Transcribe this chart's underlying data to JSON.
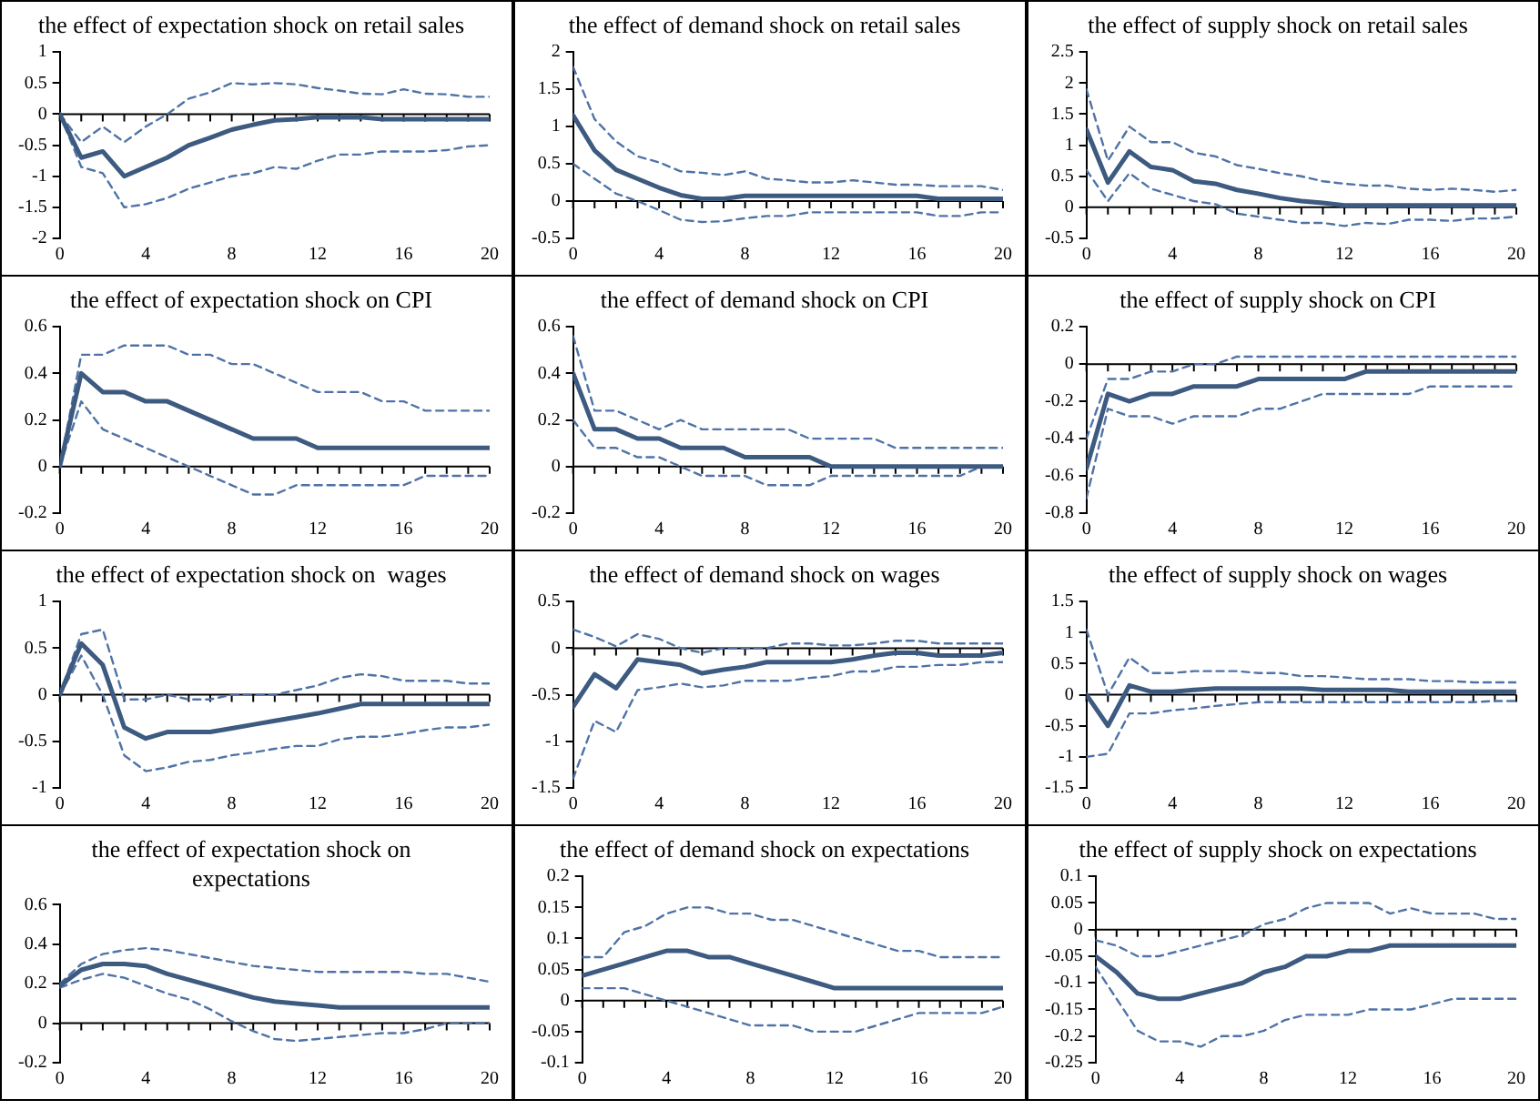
{
  "chart_data": [
    {
      "type": "line",
      "title": "the effect of expectation shock on retail sales",
      "x": [
        0,
        1,
        2,
        3,
        4,
        5,
        6,
        7,
        8,
        9,
        10,
        11,
        12,
        13,
        14,
        15,
        16,
        17,
        18,
        19,
        20
      ],
      "xlim": [
        0,
        20
      ],
      "xticks": [
        0,
        {
          "value": 1,
          "label": null
        },
        {
          "value": 2,
          "label": null
        },
        {
          "value": 3,
          "label": null
        },
        4,
        {
          "value": 5,
          "label": null
        },
        {
          "value": 6,
          "label": null
        },
        {
          "value": 7,
          "label": null
        },
        8,
        {
          "value": 9,
          "label": null
        },
        {
          "value": 10,
          "label": null
        },
        {
          "value": 11,
          "label": null
        },
        12,
        {
          "value": 13,
          "label": null
        },
        {
          "value": 14,
          "label": null
        },
        {
          "value": 15,
          "label": null
        },
        16,
        {
          "value": 17,
          "label": null
        },
        {
          "value": 18,
          "label": null
        },
        {
          "value": 19,
          "label": null
        },
        20
      ],
      "ylim": [
        -2,
        1
      ],
      "yticks": [
        -2,
        -1.5,
        -1,
        -0.5,
        0,
        0.5,
        1
      ],
      "marker": "none",
      "series": [
        {
          "color": "#3d5a80",
          "values": [
            0,
            -0.7,
            -0.6,
            -1.0,
            -0.85,
            -0.7,
            -0.5,
            -0.38,
            -0.25,
            -0.17,
            -0.1,
            -0.08,
            -0.05,
            -0.05,
            -0.05,
            -0.08,
            -0.08,
            -0.08,
            -0.08,
            -0.08,
            -0.08
          ]
        },
        {
          "color": "#4f73a6",
          "line_style": "dashed",
          "values": [
            0,
            -0.45,
            -0.2,
            -0.45,
            -0.2,
            0,
            0.25,
            0.35,
            0.5,
            0.48,
            0.5,
            0.48,
            0.42,
            0.38,
            0.33,
            0.32,
            0.4,
            0.33,
            0.32,
            0.28,
            0.28
          ]
        },
        {
          "color": "#4f73a6",
          "line_style": "dashed",
          "values": [
            0,
            -0.85,
            -0.95,
            -1.5,
            -1.45,
            -1.35,
            -1.2,
            -1.1,
            -1.0,
            -0.95,
            -0.85,
            -0.88,
            -0.75,
            -0.65,
            -0.65,
            -0.6,
            -0.6,
            -0.6,
            -0.58,
            -0.52,
            -0.5
          ]
        }
      ]
    },
    {
      "type": "line",
      "title": "the effect of demand shock on retail sales",
      "x": [
        0,
        1,
        2,
        3,
        4,
        5,
        6,
        7,
        8,
        9,
        10,
        11,
        12,
        13,
        14,
        15,
        16,
        17,
        18,
        19,
        20
      ],
      "xlim": [
        0,
        20
      ],
      "xticks": [
        0,
        {
          "value": 1,
          "label": null
        },
        {
          "value": 2,
          "label": null
        },
        {
          "value": 3,
          "label": null
        },
        4,
        {
          "value": 5,
          "label": null
        },
        {
          "value": 6,
          "label": null
        },
        {
          "value": 7,
          "label": null
        },
        8,
        {
          "value": 9,
          "label": null
        },
        {
          "value": 10,
          "label": null
        },
        {
          "value": 11,
          "label": null
        },
        12,
        {
          "value": 13,
          "label": null
        },
        {
          "value": 14,
          "label": null
        },
        {
          "value": 15,
          "label": null
        },
        16,
        {
          "value": 17,
          "label": null
        },
        {
          "value": 18,
          "label": null
        },
        {
          "value": 19,
          "label": null
        },
        20
      ],
      "ylim": [
        -0.5,
        2
      ],
      "yticks": [
        -0.5,
        0,
        0.5,
        1,
        1.5,
        2
      ],
      "marker": "none",
      "series": [
        {
          "color": "#3d5a80",
          "values": [
            1.15,
            0.68,
            0.42,
            0.3,
            0.18,
            0.08,
            0.03,
            0.03,
            0.07,
            0.07,
            0.07,
            0.07,
            0.07,
            0.07,
            0.07,
            0.07,
            0.07,
            0.03,
            0.03,
            0.03,
            0.03
          ]
        },
        {
          "color": "#4f73a6",
          "line_style": "dashed",
          "values": [
            1.8,
            1.1,
            0.8,
            0.6,
            0.52,
            0.4,
            0.38,
            0.35,
            0.4,
            0.3,
            0.28,
            0.25,
            0.25,
            0.28,
            0.25,
            0.22,
            0.22,
            0.2,
            0.2,
            0.2,
            0.15
          ]
        },
        {
          "color": "#4f73a6",
          "line_style": "dashed",
          "values": [
            0.5,
            0.3,
            0.1,
            0,
            -0.12,
            -0.25,
            -0.28,
            -0.27,
            -0.23,
            -0.2,
            -0.2,
            -0.15,
            -0.15,
            -0.15,
            -0.15,
            -0.15,
            -0.15,
            -0.2,
            -0.2,
            -0.15,
            -0.15
          ]
        }
      ]
    },
    {
      "type": "line",
      "title": "the effect of supply shock on retail sales",
      "x": [
        0,
        1,
        2,
        3,
        4,
        5,
        6,
        7,
        8,
        9,
        10,
        11,
        12,
        13,
        14,
        15,
        16,
        17,
        18,
        19,
        20
      ],
      "xlim": [
        0,
        20
      ],
      "xticks": [
        0,
        {
          "value": 1,
          "label": null
        },
        {
          "value": 2,
          "label": null
        },
        {
          "value": 3,
          "label": null
        },
        4,
        {
          "value": 5,
          "label": null
        },
        {
          "value": 6,
          "label": null
        },
        {
          "value": 7,
          "label": null
        },
        8,
        {
          "value": 9,
          "label": null
        },
        {
          "value": 10,
          "label": null
        },
        {
          "value": 11,
          "label": null
        },
        12,
        {
          "value": 13,
          "label": null
        },
        {
          "value": 14,
          "label": null
        },
        {
          "value": 15,
          "label": null
        },
        16,
        {
          "value": 17,
          "label": null
        },
        {
          "value": 18,
          "label": null
        },
        {
          "value": 19,
          "label": null
        },
        20
      ],
      "ylim": [
        -0.5,
        2.5
      ],
      "yticks": [
        -0.5,
        0,
        0.5,
        1,
        1.5,
        2,
        2.5
      ],
      "marker": "none",
      "series": [
        {
          "color": "#3d5a80",
          "values": [
            1.25,
            0.4,
            0.9,
            0.65,
            0.6,
            0.42,
            0.38,
            0.28,
            0.22,
            0.15,
            0.1,
            0.07,
            0.03,
            0.03,
            0.03,
            0.03,
            0.03,
            0.03,
            0.03,
            0.03,
            0.03
          ]
        },
        {
          "color": "#4f73a6",
          "line_style": "dashed",
          "values": [
            1.9,
            0.75,
            1.3,
            1.05,
            1.05,
            0.88,
            0.82,
            0.68,
            0.62,
            0.55,
            0.5,
            0.42,
            0.38,
            0.35,
            0.35,
            0.3,
            0.28,
            0.3,
            0.28,
            0.25,
            0.28
          ]
        },
        {
          "color": "#4f73a6",
          "line_style": "dashed",
          "values": [
            0.6,
            0.1,
            0.55,
            0.3,
            0.2,
            0.1,
            0.05,
            -0.1,
            -0.15,
            -0.2,
            -0.25,
            -0.25,
            -0.3,
            -0.25,
            -0.27,
            -0.2,
            -0.2,
            -0.22,
            -0.18,
            -0.18,
            -0.15
          ]
        }
      ]
    },
    {
      "type": "line",
      "title": "the effect of expectation shock on CPI",
      "x": [
        0,
        1,
        2,
        3,
        4,
        5,
        6,
        7,
        8,
        9,
        10,
        11,
        12,
        13,
        14,
        15,
        16,
        17,
        18,
        19,
        20
      ],
      "xlim": [
        0,
        20
      ],
      "xticks": [
        0,
        {
          "value": 1,
          "label": null
        },
        {
          "value": 2,
          "label": null
        },
        {
          "value": 3,
          "label": null
        },
        4,
        {
          "value": 5,
          "label": null
        },
        {
          "value": 6,
          "label": null
        },
        {
          "value": 7,
          "label": null
        },
        8,
        {
          "value": 9,
          "label": null
        },
        {
          "value": 10,
          "label": null
        },
        {
          "value": 11,
          "label": null
        },
        12,
        {
          "value": 13,
          "label": null
        },
        {
          "value": 14,
          "label": null
        },
        {
          "value": 15,
          "label": null
        },
        16,
        {
          "value": 17,
          "label": null
        },
        {
          "value": 18,
          "label": null
        },
        {
          "value": 19,
          "label": null
        },
        20
      ],
      "ylim": [
        -0.2,
        0.6
      ],
      "yticks": [
        -0.2,
        0,
        0.2,
        0.4,
        0.6
      ],
      "marker": "none",
      "series": [
        {
          "color": "#3d5a80",
          "values": [
            0,
            0.4,
            0.32,
            0.32,
            0.28,
            0.28,
            0.24,
            0.2,
            0.16,
            0.12,
            0.12,
            0.12,
            0.08,
            0.08,
            0.08,
            0.08,
            0.08,
            0.08,
            0.08,
            0.08,
            0.08
          ]
        },
        {
          "color": "#4f73a6",
          "line_style": "dashed",
          "values": [
            0,
            0.48,
            0.48,
            0.52,
            0.52,
            0.52,
            0.48,
            0.48,
            0.44,
            0.44,
            0.4,
            0.36,
            0.32,
            0.32,
            0.32,
            0.28,
            0.28,
            0.24,
            0.24,
            0.24,
            0.24
          ]
        },
        {
          "color": "#4f73a6",
          "line_style": "dashed",
          "values": [
            0,
            0.28,
            0.16,
            0.12,
            0.08,
            0.04,
            0,
            -0.04,
            -0.08,
            -0.12,
            -0.12,
            -0.08,
            -0.08,
            -0.08,
            -0.08,
            -0.08,
            -0.08,
            -0.04,
            -0.04,
            -0.04,
            -0.04
          ]
        }
      ]
    },
    {
      "type": "line",
      "title": "the effect of demand shock on CPI",
      "x": [
        0,
        1,
        2,
        3,
        4,
        5,
        6,
        7,
        8,
        9,
        10,
        11,
        12,
        13,
        14,
        15,
        16,
        17,
        18,
        19,
        20
      ],
      "xlim": [
        0,
        20
      ],
      "xticks": [
        0,
        {
          "value": 1,
          "label": null
        },
        {
          "value": 2,
          "label": null
        },
        {
          "value": 3,
          "label": null
        },
        4,
        {
          "value": 5,
          "label": null
        },
        {
          "value": 6,
          "label": null
        },
        {
          "value": 7,
          "label": null
        },
        8,
        {
          "value": 9,
          "label": null
        },
        {
          "value": 10,
          "label": null
        },
        {
          "value": 11,
          "label": null
        },
        12,
        {
          "value": 13,
          "label": null
        },
        {
          "value": 14,
          "label": null
        },
        {
          "value": 15,
          "label": null
        },
        16,
        {
          "value": 17,
          "label": null
        },
        {
          "value": 18,
          "label": null
        },
        {
          "value": 19,
          "label": null
        },
        20
      ],
      "ylim": [
        -0.2,
        0.6
      ],
      "yticks": [
        -0.2,
        0,
        0.2,
        0.4,
        0.6
      ],
      "marker": "none",
      "series": [
        {
          "color": "#3d5a80",
          "values": [
            0.4,
            0.16,
            0.16,
            0.12,
            0.12,
            0.08,
            0.08,
            0.08,
            0.04,
            0.04,
            0.04,
            0.04,
            0,
            0,
            0,
            0,
            0,
            0,
            0,
            0,
            0
          ]
        },
        {
          "color": "#4f73a6",
          "line_style": "dashed",
          "values": [
            0.56,
            0.24,
            0.24,
            0.2,
            0.16,
            0.2,
            0.16,
            0.16,
            0.16,
            0.16,
            0.16,
            0.12,
            0.12,
            0.12,
            0.12,
            0.08,
            0.08,
            0.08,
            0.08,
            0.08,
            0.08
          ]
        },
        {
          "color": "#4f73a6",
          "line_style": "dashed",
          "values": [
            0.2,
            0.08,
            0.08,
            0.04,
            0.04,
            0,
            -0.04,
            -0.04,
            -0.04,
            -0.08,
            -0.08,
            -0.08,
            -0.04,
            -0.04,
            -0.04,
            -0.04,
            -0.04,
            -0.04,
            -0.04,
            0,
            0
          ]
        }
      ]
    },
    {
      "type": "line",
      "title": "the effect of supply shock on CPI",
      "x": [
        0,
        1,
        2,
        3,
        4,
        5,
        6,
        7,
        8,
        9,
        10,
        11,
        12,
        13,
        14,
        15,
        16,
        17,
        18,
        19,
        20
      ],
      "xlim": [
        0,
        20
      ],
      "xticks": [
        0,
        {
          "value": 1,
          "label": null
        },
        {
          "value": 2,
          "label": null
        },
        {
          "value": 3,
          "label": null
        },
        4,
        {
          "value": 5,
          "label": null
        },
        {
          "value": 6,
          "label": null
        },
        {
          "value": 7,
          "label": null
        },
        8,
        {
          "value": 9,
          "label": null
        },
        {
          "value": 10,
          "label": null
        },
        {
          "value": 11,
          "label": null
        },
        12,
        {
          "value": 13,
          "label": null
        },
        {
          "value": 14,
          "label": null
        },
        {
          "value": 15,
          "label": null
        },
        16,
        {
          "value": 17,
          "label": null
        },
        {
          "value": 18,
          "label": null
        },
        {
          "value": 19,
          "label": null
        },
        20
      ],
      "ylim": [
        -0.8,
        0.2
      ],
      "yticks": [
        -0.8,
        -0.6,
        -0.4,
        -0.2,
        0,
        0.2
      ],
      "marker": "none",
      "series": [
        {
          "color": "#3d5a80",
          "values": [
            -0.56,
            -0.16,
            -0.2,
            -0.16,
            -0.16,
            -0.12,
            -0.12,
            -0.12,
            -0.08,
            -0.08,
            -0.08,
            -0.08,
            -0.08,
            -0.04,
            -0.04,
            -0.04,
            -0.04,
            -0.04,
            -0.04,
            -0.04,
            -0.04
          ]
        },
        {
          "color": "#4f73a6",
          "line_style": "dashed",
          "values": [
            -0.4,
            -0.08,
            -0.08,
            -0.04,
            -0.04,
            0,
            0,
            0.04,
            0.04,
            0.04,
            0.04,
            0.04,
            0.04,
            0.04,
            0.04,
            0.04,
            0.04,
            0.04,
            0.04,
            0.04,
            0.04
          ]
        },
        {
          "color": "#4f73a6",
          "line_style": "dashed",
          "values": [
            -0.72,
            -0.24,
            -0.28,
            -0.28,
            -0.32,
            -0.28,
            -0.28,
            -0.28,
            -0.24,
            -0.24,
            -0.2,
            -0.16,
            -0.16,
            -0.16,
            -0.16,
            -0.16,
            -0.12,
            -0.12,
            -0.12,
            -0.12,
            -0.12
          ]
        }
      ]
    },
    {
      "type": "line",
      "title": "the effect of expectation shock on  wages",
      "x": [
        0,
        1,
        2,
        3,
        4,
        5,
        6,
        7,
        8,
        9,
        10,
        11,
        12,
        13,
        14,
        15,
        16,
        17,
        18,
        19,
        20
      ],
      "xlim": [
        0,
        20
      ],
      "xticks": [
        0,
        {
          "value": 1,
          "label": null
        },
        {
          "value": 2,
          "label": null
        },
        {
          "value": 3,
          "label": null
        },
        4,
        {
          "value": 5,
          "label": null
        },
        {
          "value": 6,
          "label": null
        },
        {
          "value": 7,
          "label": null
        },
        8,
        {
          "value": 9,
          "label": null
        },
        {
          "value": 10,
          "label": null
        },
        {
          "value": 11,
          "label": null
        },
        12,
        {
          "value": 13,
          "label": null
        },
        {
          "value": 14,
          "label": null
        },
        {
          "value": 15,
          "label": null
        },
        16,
        {
          "value": 17,
          "label": null
        },
        {
          "value": 18,
          "label": null
        },
        {
          "value": 19,
          "label": null
        },
        20
      ],
      "ylim": [
        -1,
        1
      ],
      "yticks": [
        -1,
        -0.5,
        0,
        0.5,
        1
      ],
      "marker": "none",
      "series": [
        {
          "color": "#3d5a80",
          "values": [
            0,
            0.55,
            0.32,
            -0.35,
            -0.47,
            -0.4,
            -0.4,
            -0.4,
            -0.36,
            -0.32,
            -0.28,
            -0.24,
            -0.2,
            -0.15,
            -0.1,
            -0.1,
            -0.1,
            -0.1,
            -0.1,
            -0.1,
            -0.1
          ]
        },
        {
          "color": "#4f73a6",
          "line_style": "dashed",
          "values": [
            0,
            0.65,
            0.7,
            -0.05,
            -0.05,
            0,
            -0.05,
            -0.05,
            0,
            0,
            0,
            0.05,
            0.1,
            0.18,
            0.22,
            0.2,
            0.15,
            0.15,
            0.15,
            0.12,
            0.12
          ]
        },
        {
          "color": "#4f73a6",
          "line_style": "dashed",
          "values": [
            0,
            0.42,
            0,
            -0.65,
            -0.82,
            -0.78,
            -0.72,
            -0.7,
            -0.65,
            -0.62,
            -0.58,
            -0.55,
            -0.55,
            -0.48,
            -0.45,
            -0.45,
            -0.42,
            -0.38,
            -0.35,
            -0.35,
            -0.32
          ]
        }
      ]
    },
    {
      "type": "line",
      "title": "the effect of demand shock on wages",
      "x": [
        0,
        1,
        2,
        3,
        4,
        5,
        6,
        7,
        8,
        9,
        10,
        11,
        12,
        13,
        14,
        15,
        16,
        17,
        18,
        19,
        20
      ],
      "xlim": [
        0,
        20
      ],
      "xticks": [
        0,
        {
          "value": 1,
          "label": null
        },
        {
          "value": 2,
          "label": null
        },
        {
          "value": 3,
          "label": null
        },
        4,
        {
          "value": 5,
          "label": null
        },
        {
          "value": 6,
          "label": null
        },
        {
          "value": 7,
          "label": null
        },
        8,
        {
          "value": 9,
          "label": null
        },
        {
          "value": 10,
          "label": null
        },
        {
          "value": 11,
          "label": null
        },
        12,
        {
          "value": 13,
          "label": null
        },
        {
          "value": 14,
          "label": null
        },
        {
          "value": 15,
          "label": null
        },
        16,
        {
          "value": 17,
          "label": null
        },
        {
          "value": 18,
          "label": null
        },
        {
          "value": 19,
          "label": null
        },
        20
      ],
      "ylim": [
        -1.5,
        0.5
      ],
      "yticks": [
        -1.5,
        -1,
        -0.5,
        0,
        0.5
      ],
      "marker": "none",
      "series": [
        {
          "color": "#3d5a80",
          "values": [
            -0.63,
            -0.28,
            -0.43,
            -0.12,
            -0.15,
            -0.18,
            -0.27,
            -0.23,
            -0.2,
            -0.15,
            -0.15,
            -0.15,
            -0.15,
            -0.12,
            -0.08,
            -0.05,
            -0.05,
            -0.08,
            -0.08,
            -0.08,
            -0.05
          ]
        },
        {
          "color": "#4f73a6",
          "line_style": "dashed",
          "values": [
            0.2,
            0.12,
            0.02,
            0.15,
            0.1,
            0,
            -0.05,
            0,
            0,
            0,
            0.05,
            0.05,
            0.03,
            0.03,
            0.05,
            0.08,
            0.08,
            0.05,
            0.05,
            0.05,
            0.05
          ]
        },
        {
          "color": "#4f73a6",
          "line_style": "dashed",
          "values": [
            -1.4,
            -0.78,
            -0.9,
            -0.45,
            -0.42,
            -0.38,
            -0.42,
            -0.4,
            -0.35,
            -0.35,
            -0.35,
            -0.32,
            -0.3,
            -0.25,
            -0.25,
            -0.2,
            -0.2,
            -0.18,
            -0.18,
            -0.15,
            -0.15
          ]
        }
      ]
    },
    {
      "type": "line",
      "title": "the effect of supply shock on wages",
      "x": [
        0,
        1,
        2,
        3,
        4,
        5,
        6,
        7,
        8,
        9,
        10,
        11,
        12,
        13,
        14,
        15,
        16,
        17,
        18,
        19,
        20
      ],
      "xlim": [
        0,
        20
      ],
      "xticks": [
        0,
        {
          "value": 1,
          "label": null
        },
        {
          "value": 2,
          "label": null
        },
        {
          "value": 3,
          "label": null
        },
        4,
        {
          "value": 5,
          "label": null
        },
        {
          "value": 6,
          "label": null
        },
        {
          "value": 7,
          "label": null
        },
        8,
        {
          "value": 9,
          "label": null
        },
        {
          "value": 10,
          "label": null
        },
        {
          "value": 11,
          "label": null
        },
        12,
        {
          "value": 13,
          "label": null
        },
        {
          "value": 14,
          "label": null
        },
        {
          "value": 15,
          "label": null
        },
        16,
        {
          "value": 17,
          "label": null
        },
        {
          "value": 18,
          "label": null
        },
        {
          "value": 19,
          "label": null
        },
        20
      ],
      "ylim": [
        -1.5,
        1.5
      ],
      "yticks": [
        -1.5,
        -1,
        -0.5,
        0,
        0.5,
        1,
        1.5
      ],
      "marker": "none",
      "series": [
        {
          "color": "#3d5a80",
          "values": [
            0,
            -0.5,
            0.15,
            0.05,
            0.05,
            0.08,
            0.1,
            0.1,
            0.1,
            0.1,
            0.1,
            0.08,
            0.08,
            0.08,
            0.08,
            0.05,
            0.05,
            0.05,
            0.05,
            0.05,
            0.05
          ]
        },
        {
          "color": "#4f73a6",
          "line_style": "dashed",
          "values": [
            1.05,
            0,
            0.6,
            0.35,
            0.35,
            0.38,
            0.38,
            0.38,
            0.35,
            0.35,
            0.3,
            0.3,
            0.28,
            0.25,
            0.25,
            0.25,
            0.22,
            0.22,
            0.2,
            0.2,
            0.2
          ]
        },
        {
          "color": "#4f73a6",
          "line_style": "dashed",
          "values": [
            -1.0,
            -0.95,
            -0.3,
            -0.3,
            -0.25,
            -0.22,
            -0.18,
            -0.15,
            -0.12,
            -0.12,
            -0.12,
            -0.12,
            -0.12,
            -0.12,
            -0.12,
            -0.12,
            -0.12,
            -0.12,
            -0.12,
            -0.1,
            -0.1
          ]
        }
      ]
    },
    {
      "type": "line",
      "title": "the effect of expectation shock on expectations",
      "x": [
        0,
        1,
        2,
        3,
        4,
        5,
        6,
        7,
        8,
        9,
        10,
        11,
        12,
        13,
        14,
        15,
        16,
        17,
        18,
        19,
        20
      ],
      "xlim": [
        0,
        20
      ],
      "xticks": [
        0,
        {
          "value": 1,
          "label": null
        },
        {
          "value": 2,
          "label": null
        },
        {
          "value": 3,
          "label": null
        },
        4,
        {
          "value": 5,
          "label": null
        },
        {
          "value": 6,
          "label": null
        },
        {
          "value": 7,
          "label": null
        },
        8,
        {
          "value": 9,
          "label": null
        },
        {
          "value": 10,
          "label": null
        },
        {
          "value": 11,
          "label": null
        },
        12,
        {
          "value": 13,
          "label": null
        },
        {
          "value": 14,
          "label": null
        },
        {
          "value": 15,
          "label": null
        },
        16,
        {
          "value": 17,
          "label": null
        },
        {
          "value": 18,
          "label": null
        },
        {
          "value": 19,
          "label": null
        },
        20
      ],
      "ylim": [
        -0.2,
        0.6
      ],
      "yticks": [
        -0.2,
        0,
        0.2,
        0.4,
        0.6
      ],
      "marker": "none",
      "series": [
        {
          "color": "#3d5a80",
          "values": [
            0.19,
            0.27,
            0.3,
            0.3,
            0.29,
            0.25,
            0.22,
            0.19,
            0.16,
            0.13,
            0.11,
            0.1,
            0.09,
            0.08,
            0.08,
            0.08,
            0.08,
            0.08,
            0.08,
            0.08,
            0.08
          ]
        },
        {
          "color": "#4f73a6",
          "line_style": "dashed",
          "values": [
            0.2,
            0.3,
            0.35,
            0.37,
            0.38,
            0.37,
            0.35,
            0.33,
            0.31,
            0.29,
            0.28,
            0.27,
            0.26,
            0.26,
            0.26,
            0.26,
            0.26,
            0.25,
            0.25,
            0.23,
            0.21
          ]
        },
        {
          "color": "#4f73a6",
          "line_style": "dashed",
          "values": [
            0.18,
            0.22,
            0.25,
            0.23,
            0.19,
            0.15,
            0.12,
            0.07,
            0.01,
            -0.04,
            -0.08,
            -0.09,
            -0.08,
            -0.07,
            -0.06,
            -0.05,
            -0.05,
            -0.03,
            0,
            0,
            0
          ]
        }
      ]
    },
    {
      "type": "line",
      "title": "the effect of demand shock on expectations",
      "x": [
        0,
        1,
        2,
        3,
        4,
        5,
        6,
        7,
        8,
        9,
        10,
        11,
        12,
        13,
        14,
        15,
        16,
        17,
        18,
        19,
        20
      ],
      "xlim": [
        0,
        20
      ],
      "xticks": [
        0,
        {
          "value": 1,
          "label": null
        },
        {
          "value": 2,
          "label": null
        },
        {
          "value": 3,
          "label": null
        },
        4,
        {
          "value": 5,
          "label": null
        },
        {
          "value": 6,
          "label": null
        },
        {
          "value": 7,
          "label": null
        },
        8,
        {
          "value": 9,
          "label": null
        },
        {
          "value": 10,
          "label": null
        },
        {
          "value": 11,
          "label": null
        },
        12,
        {
          "value": 13,
          "label": null
        },
        {
          "value": 14,
          "label": null
        },
        {
          "value": 15,
          "label": null
        },
        16,
        {
          "value": 17,
          "label": null
        },
        {
          "value": 18,
          "label": null
        },
        {
          "value": 19,
          "label": null
        },
        20
      ],
      "ylim": [
        -0.1,
        0.2
      ],
      "yticks": [
        -0.1,
        -0.05,
        0,
        0.05,
        0.1,
        0.15,
        0.2
      ],
      "marker": "none",
      "series": [
        {
          "color": "#3d5a80",
          "values": [
            0.04,
            0.05,
            0.06,
            0.07,
            0.08,
            0.08,
            0.07,
            0.07,
            0.06,
            0.05,
            0.04,
            0.03,
            0.02,
            0.02,
            0.02,
            0.02,
            0.02,
            0.02,
            0.02,
            0.02,
            0.02
          ]
        },
        {
          "color": "#4f73a6",
          "line_style": "dashed",
          "values": [
            0.07,
            0.07,
            0.11,
            0.12,
            0.14,
            0.15,
            0.15,
            0.14,
            0.14,
            0.13,
            0.13,
            0.12,
            0.11,
            0.1,
            0.09,
            0.08,
            0.08,
            0.07,
            0.07,
            0.07,
            0.07
          ]
        },
        {
          "color": "#4f73a6",
          "line_style": "dashed",
          "values": [
            0.02,
            0.02,
            0.02,
            0.01,
            0,
            -0.01,
            -0.02,
            -0.03,
            -0.04,
            -0.04,
            -0.04,
            -0.05,
            -0.05,
            -0.05,
            -0.04,
            -0.03,
            -0.02,
            -0.02,
            -0.02,
            -0.02,
            -0.01
          ]
        }
      ]
    },
    {
      "type": "line",
      "title": "the effect of supply shock on expectations",
      "x": [
        0,
        1,
        2,
        3,
        4,
        5,
        6,
        7,
        8,
        9,
        10,
        11,
        12,
        13,
        14,
        15,
        16,
        17,
        18,
        19,
        20
      ],
      "xlim": [
        0,
        20
      ],
      "xticks": [
        0,
        {
          "value": 1,
          "label": null
        },
        {
          "value": 2,
          "label": null
        },
        {
          "value": 3,
          "label": null
        },
        4,
        {
          "value": 5,
          "label": null
        },
        {
          "value": 6,
          "label": null
        },
        {
          "value": 7,
          "label": null
        },
        8,
        {
          "value": 9,
          "label": null
        },
        {
          "value": 10,
          "label": null
        },
        {
          "value": 11,
          "label": null
        },
        12,
        {
          "value": 13,
          "label": null
        },
        {
          "value": 14,
          "label": null
        },
        {
          "value": 15,
          "label": null
        },
        16,
        {
          "value": 17,
          "label": null
        },
        {
          "value": 18,
          "label": null
        },
        {
          "value": 19,
          "label": null
        },
        20
      ],
      "ylim": [
        -0.25,
        0.1
      ],
      "yticks": [
        -0.25,
        -0.2,
        -0.15,
        -0.1,
        -0.05,
        0,
        0.05,
        0.1
      ],
      "marker": "none",
      "series": [
        {
          "color": "#3d5a80",
          "values": [
            -0.05,
            -0.08,
            -0.12,
            -0.13,
            -0.13,
            -0.12,
            -0.11,
            -0.1,
            -0.08,
            -0.07,
            -0.05,
            -0.05,
            -0.04,
            -0.04,
            -0.03,
            -0.03,
            -0.03,
            -0.03,
            -0.03,
            -0.03,
            -0.03
          ]
        },
        {
          "color": "#4f73a6",
          "line_style": "dashed",
          "values": [
            -0.02,
            -0.03,
            -0.05,
            -0.05,
            -0.04,
            -0.03,
            -0.02,
            -0.01,
            0.01,
            0.02,
            0.04,
            0.05,
            0.05,
            0.05,
            0.03,
            0.04,
            0.03,
            0.03,
            0.03,
            0.02,
            0.02
          ]
        },
        {
          "color": "#4f73a6",
          "line_style": "dashed",
          "values": [
            -0.07,
            -0.13,
            -0.19,
            -0.21,
            -0.21,
            -0.22,
            -0.2,
            -0.2,
            -0.19,
            -0.17,
            -0.16,
            -0.16,
            -0.16,
            -0.15,
            -0.15,
            -0.15,
            -0.14,
            -0.13,
            -0.13,
            -0.13,
            -0.13
          ]
        }
      ]
    }
  ]
}
